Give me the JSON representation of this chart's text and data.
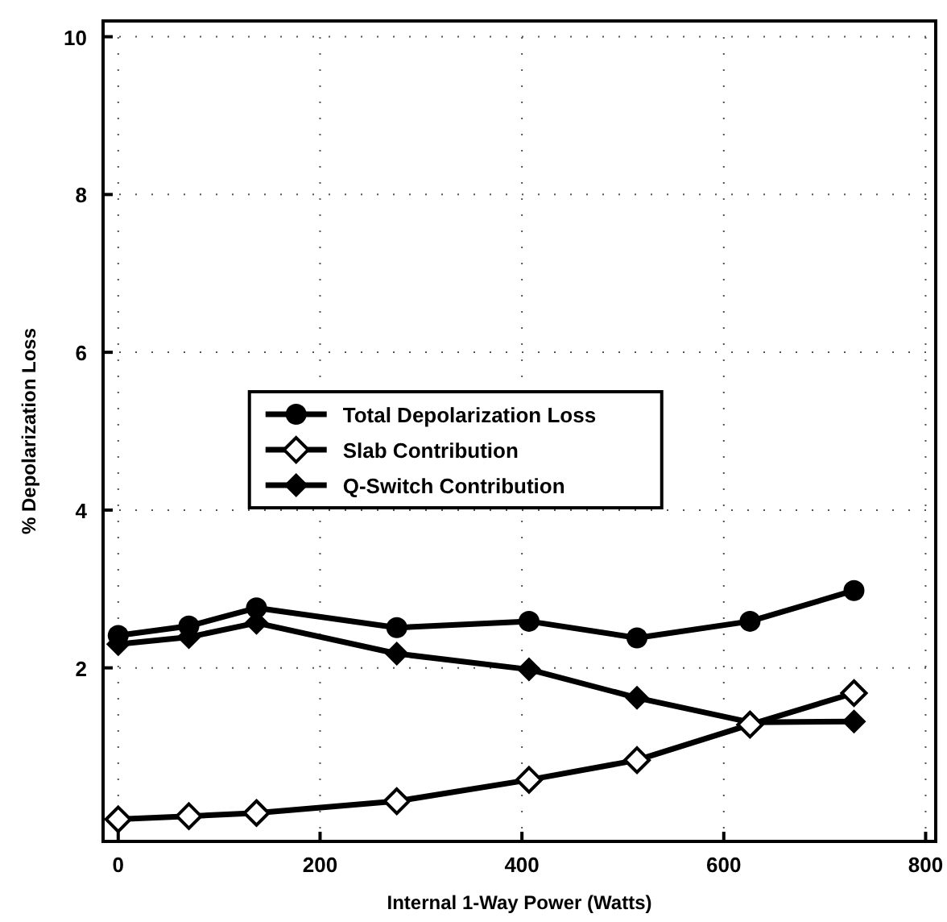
{
  "chart_data": {
    "type": "line",
    "xlabel": "Internal 1-Way Power (Watts)",
    "ylabel": "% Depolarization Loss",
    "x": [
      0,
      70,
      137,
      276,
      407,
      514,
      626,
      729
    ],
    "series": [
      {
        "name": "Total Depolarization Loss",
        "color": "#000000",
        "marker": "circle",
        "values": [
          2.41,
          2.53,
          2.76,
          2.51,
          2.59,
          2.38,
          2.59,
          2.98
        ]
      },
      {
        "name": "Slab Contribution",
        "color": "#000000",
        "marker": "diamond-open",
        "values": [
          0.08,
          0.12,
          0.16,
          0.31,
          0.58,
          0.83,
          1.28,
          1.68
        ]
      },
      {
        "name": "Q-Switch Contribution",
        "color": "#000000",
        "marker": "diamond",
        "values": [
          2.3,
          2.39,
          2.57,
          2.18,
          1.98,
          1.62,
          1.31,
          1.32
        ]
      }
    ],
    "xlim": [
      -15,
      810
    ],
    "ylim": [
      -0.2,
      10.2
    ],
    "xticks": [
      0,
      200,
      400,
      600,
      800
    ],
    "yticks": [
      2,
      4,
      6,
      8,
      10
    ],
    "grid": true,
    "legend": "center",
    "line_style": "solid"
  }
}
